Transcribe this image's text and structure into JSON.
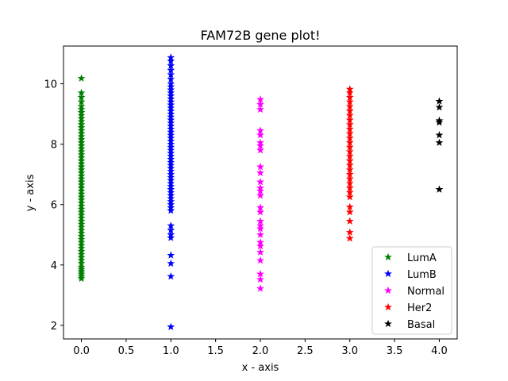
{
  "chart_data": {
    "type": "scatter",
    "title": "FAM72B gene plot!",
    "xlabel": "x - axis",
    "ylabel": "y - axis",
    "xlim": [
      -0.2,
      4.2
    ],
    "ylim": [
      1.55,
      11.25
    ],
    "xticks": [
      "0.0",
      "0.5",
      "1.0",
      "1.5",
      "2.0",
      "2.5",
      "3.0",
      "3.5",
      "4.0"
    ],
    "yticks": [
      "2",
      "4",
      "6",
      "8",
      "10"
    ],
    "grid": false,
    "legend_position": "lower-right",
    "marker": "star",
    "series": [
      {
        "name": "LumA",
        "color": "#008000",
        "x": 0,
        "y": [
          3.55,
          3.62,
          3.7,
          3.78,
          3.85,
          3.92,
          4.05,
          4.15,
          4.25,
          4.35,
          4.45,
          4.55,
          4.65,
          4.75,
          4.85,
          4.95,
          5.05,
          5.15,
          5.25,
          5.35,
          5.45,
          5.55,
          5.65,
          5.75,
          5.85,
          5.95,
          6.05,
          6.15,
          6.25,
          6.35,
          6.45,
          6.55,
          6.65,
          6.75,
          6.85,
          6.95,
          7.05,
          7.15,
          7.25,
          7.35,
          7.45,
          7.55,
          7.65,
          7.75,
          7.85,
          7.95,
          8.05,
          8.15,
          8.25,
          8.35,
          8.45,
          8.55,
          8.65,
          8.75,
          8.85,
          8.95,
          9.05,
          9.15,
          9.25,
          9.4,
          9.55,
          9.7,
          10.18
        ]
      },
      {
        "name": "LumB",
        "color": "#0000ff",
        "x": 1,
        "y": [
          1.95,
          3.62,
          4.05,
          4.32,
          4.9,
          5.0,
          5.15,
          5.3,
          5.8,
          5.9,
          6.0,
          6.1,
          6.2,
          6.3,
          6.4,
          6.5,
          6.6,
          6.7,
          6.8,
          6.9,
          7.0,
          7.1,
          7.2,
          7.3,
          7.4,
          7.5,
          7.6,
          7.7,
          7.8,
          7.9,
          8.0,
          8.1,
          8.2,
          8.3,
          8.4,
          8.5,
          8.6,
          8.7,
          8.8,
          8.9,
          9.0,
          9.1,
          9.2,
          9.3,
          9.4,
          9.5,
          9.6,
          9.7,
          9.8,
          9.9,
          10.0,
          10.15,
          10.3,
          10.45,
          10.6,
          10.75,
          10.87
        ]
      },
      {
        "name": "Normal",
        "color": "#ff00ff",
        "x": 2,
        "y": [
          3.22,
          3.52,
          3.7,
          4.15,
          4.42,
          4.62,
          4.75,
          5.0,
          5.2,
          5.3,
          5.45,
          5.75,
          5.9,
          6.3,
          6.45,
          6.55,
          6.75,
          7.05,
          7.25,
          7.8,
          7.95,
          8.05,
          8.3,
          8.45,
          9.15,
          9.32,
          9.48
        ]
      },
      {
        "name": "Her2",
        "color": "#ff0000",
        "x": 3,
        "y": [
          4.88,
          5.08,
          5.45,
          5.75,
          5.92,
          6.25,
          6.4,
          6.55,
          6.7,
          6.85,
          7.0,
          7.15,
          7.3,
          7.45,
          7.6,
          7.75,
          7.9,
          8.05,
          8.2,
          8.35,
          8.5,
          8.65,
          8.8,
          8.95,
          9.1,
          9.25,
          9.4,
          9.55,
          9.7,
          9.82
        ]
      },
      {
        "name": "Basal",
        "color": "#000000",
        "x": 4,
        "y": [
          6.5,
          8.05,
          8.3,
          8.72,
          8.78,
          9.22,
          9.42
        ]
      }
    ]
  }
}
